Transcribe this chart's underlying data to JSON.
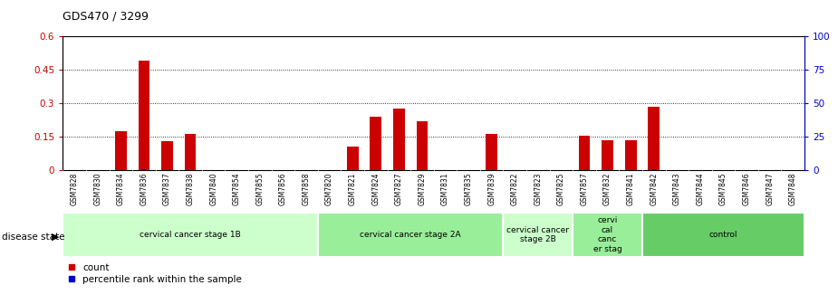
{
  "title": "GDS470 / 3299",
  "samples": [
    "GSM7828",
    "GSM7830",
    "GSM7834",
    "GSM7836",
    "GSM7837",
    "GSM7838",
    "GSM7840",
    "GSM7854",
    "GSM7855",
    "GSM7856",
    "GSM7858",
    "GSM7820",
    "GSM7821",
    "GSM7824",
    "GSM7827",
    "GSM7829",
    "GSM7831",
    "GSM7835",
    "GSM7839",
    "GSM7822",
    "GSM7823",
    "GSM7825",
    "GSM7857",
    "GSM7832",
    "GSM7841",
    "GSM7842",
    "GSM7843",
    "GSM7844",
    "GSM7845",
    "GSM7846",
    "GSM7847",
    "GSM7848"
  ],
  "count_values": [
    0.0,
    0.0,
    0.175,
    0.49,
    0.13,
    0.165,
    0.0,
    0.0,
    0.0,
    0.0,
    0.0,
    0.0,
    0.105,
    0.24,
    0.275,
    0.22,
    0.0,
    0.0,
    0.165,
    0.0,
    0.0,
    0.0,
    0.155,
    0.135,
    0.135,
    0.285,
    0.0,
    0.0,
    0.0,
    0.0,
    0.0,
    0.0
  ],
  "percentile_values": [
    0,
    0,
    0.27,
    0.55,
    0.205,
    0.27,
    0,
    0,
    0,
    0,
    0,
    0,
    0.1,
    0.29,
    0.27,
    0.27,
    0,
    0,
    0,
    0,
    0,
    0,
    0.25,
    0.22,
    0.22,
    0.48,
    0,
    0,
    0,
    0,
    0,
    0
  ],
  "groups": [
    {
      "label": "cervical cancer stage 1B",
      "start": 0,
      "end": 10,
      "color": "#ccffcc"
    },
    {
      "label": "cervical cancer stage 2A",
      "start": 11,
      "end": 18,
      "color": "#99ee99"
    },
    {
      "label": "cervical cancer\nstage 2B",
      "start": 19,
      "end": 21,
      "color": "#ccffcc"
    },
    {
      "label": "cervi\ncal\ncanc\ner stag",
      "start": 22,
      "end": 24,
      "color": "#99ee99"
    },
    {
      "label": "control",
      "start": 25,
      "end": 31,
      "color": "#66cc66"
    }
  ],
  "group_colors": [
    "#ccffcc",
    "#99ee99",
    "#ccffcc",
    "#99ee99",
    "#66cc66"
  ],
  "ylim_left": [
    0,
    0.6
  ],
  "ylim_right": [
    0,
    100
  ],
  "yticks_left": [
    0,
    0.15,
    0.3,
    0.45,
    0.6
  ],
  "ytick_labels_left": [
    "0",
    "0.15",
    "0.3",
    "0.45",
    "0.6"
  ],
  "yticks_right": [
    0,
    25,
    50,
    75,
    100
  ],
  "bar_color_red": "#cc0000",
  "bar_color_blue": "#0000cc",
  "left_axis_color": "#cc0000",
  "right_axis_color": "#0000cc",
  "bg_color": "#ffffff",
  "disease_state_label": "disease state",
  "legend_count": "count",
  "legend_percentile": "percentile rank within the sample"
}
